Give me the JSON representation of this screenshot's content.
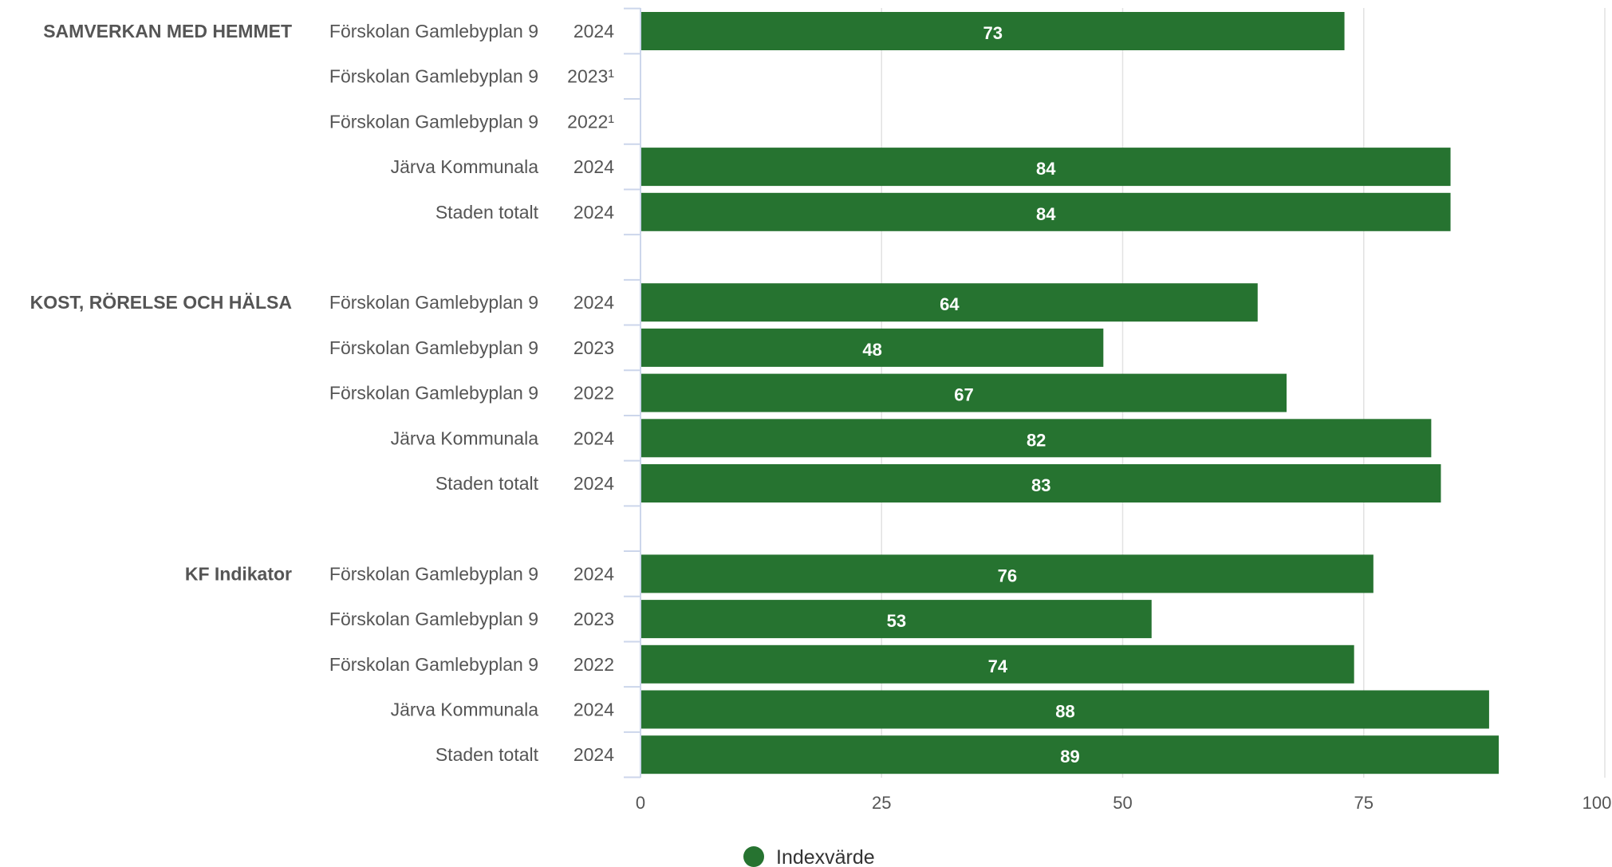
{
  "chart_data": {
    "type": "bar",
    "orientation": "horizontal",
    "xlim": [
      0,
      100
    ],
    "x_ticks": [
      "0",
      "25",
      "50",
      "75",
      "100"
    ],
    "grid": true,
    "legend": {
      "position": "bottom-center",
      "label": "Indexvärde",
      "color": "#267330"
    },
    "bar_color": "#267330",
    "groups": [
      {
        "name": "SAMVERKAN MED HEMMET",
        "rows": [
          {
            "unit": "Förskolan Gamlebyplan 9",
            "year": "2024",
            "value": 73
          },
          {
            "unit": "Förskolan Gamlebyplan 9",
            "year": "2023¹",
            "value": null
          },
          {
            "unit": "Förskolan Gamlebyplan 9",
            "year": "2022¹",
            "value": null
          },
          {
            "unit": "Järva Kommunala",
            "year": "2024",
            "value": 84
          },
          {
            "unit": "Staden totalt",
            "year": "2024",
            "value": 84
          }
        ]
      },
      {
        "name": "KOST, RÖRELSE OCH HÄLSA",
        "rows": [
          {
            "unit": "Förskolan Gamlebyplan 9",
            "year": "2024",
            "value": 64
          },
          {
            "unit": "Förskolan Gamlebyplan 9",
            "year": "2023",
            "value": 48
          },
          {
            "unit": "Förskolan Gamlebyplan 9",
            "year": "2022",
            "value": 67
          },
          {
            "unit": "Järva Kommunala",
            "year": "2024",
            "value": 82
          },
          {
            "unit": "Staden totalt",
            "year": "2024",
            "value": 83
          }
        ]
      },
      {
        "name": "KF Indikator",
        "rows": [
          {
            "unit": "Förskolan Gamlebyplan 9",
            "year": "2024",
            "value": 76
          },
          {
            "unit": "Förskolan Gamlebyplan 9",
            "year": "2023",
            "value": 53
          },
          {
            "unit": "Förskolan Gamlebyplan 9",
            "year": "2022",
            "value": 74
          },
          {
            "unit": "Järva Kommunala",
            "year": "2024",
            "value": 88
          },
          {
            "unit": "Staden totalt",
            "year": "2024",
            "value": 89
          }
        ]
      }
    ]
  }
}
